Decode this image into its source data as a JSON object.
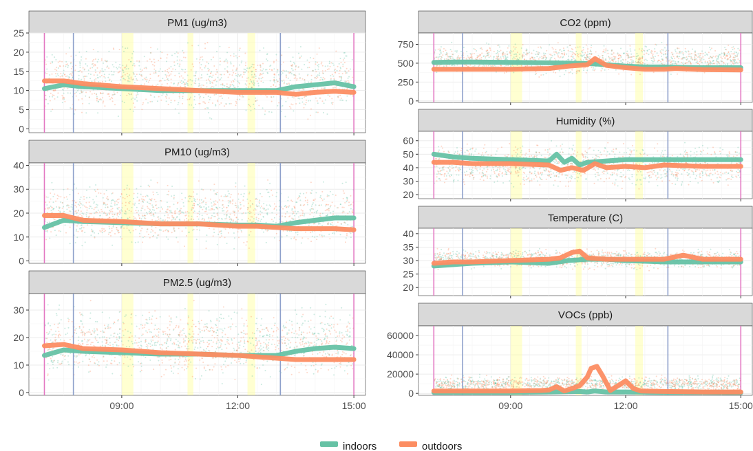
{
  "colors": {
    "indoors": "#66c2a5",
    "outdoors": "#fc8d62",
    "strip_bg": "#d9d9d9",
    "grid": "#ebebeb",
    "pink_line": "#e377c2",
    "blue_line": "#8da0cb",
    "yellow_band": "#ffff99"
  },
  "legend": {
    "items": [
      {
        "key": "indoors",
        "label": "indoors"
      },
      {
        "key": "outdoors",
        "label": "outdoors"
      }
    ]
  },
  "chart_data": [
    {
      "type": "scatter",
      "title": "PM1 (ug/m3)",
      "x_ticks": [
        "09:00",
        "12:00",
        "15:00"
      ],
      "x_tick_hours": [
        9,
        12,
        15
      ],
      "xlim_hours": [
        6.6,
        15.3
      ],
      "ylim": [
        -1,
        25
      ],
      "yticks": [
        0,
        5,
        10,
        15,
        20,
        25
      ],
      "scatter_spread": {
        "lo": 1,
        "hi": 24
      },
      "series": [
        {
          "key": "indoors",
          "name": "indoors",
          "x": [
            7,
            7.5,
            8,
            9,
            10,
            11,
            12,
            12.5,
            13,
            13.5,
            14,
            14.5,
            15
          ],
          "y": [
            10.5,
            11.5,
            11,
            10.5,
            10,
            10,
            10,
            10,
            10,
            11,
            11.5,
            12,
            11
          ]
        },
        {
          "key": "outdoors",
          "name": "outdoors",
          "x": [
            7,
            7.5,
            8,
            9,
            10,
            11,
            12,
            12.5,
            13,
            13.5,
            14,
            14.5,
            15
          ],
          "y": [
            12.5,
            12.5,
            11.8,
            11,
            10.5,
            10,
            9.5,
            9.5,
            9.5,
            9,
            9.5,
            9.8,
            9.5
          ]
        }
      ]
    },
    {
      "type": "scatter",
      "title": "PM10 (ug/m3)",
      "x_ticks": [
        "09:00",
        "12:00",
        "15:00"
      ],
      "x_tick_hours": [
        9,
        12,
        15
      ],
      "xlim_hours": [
        6.6,
        15.3
      ],
      "ylim": [
        -1,
        41
      ],
      "yticks": [
        0,
        10,
        20,
        30,
        40
      ],
      "scatter_spread": {
        "lo": 3,
        "hi": 36
      },
      "series": [
        {
          "key": "indoors",
          "name": "indoors",
          "x": [
            7,
            7.5,
            8,
            9,
            10,
            11,
            12,
            12.5,
            13,
            13.5,
            14,
            14.5,
            15
          ],
          "y": [
            14,
            17,
            16.5,
            16,
            15.5,
            15.5,
            15,
            15,
            14.5,
            16,
            17,
            18,
            18
          ]
        },
        {
          "key": "outdoors",
          "name": "outdoors",
          "x": [
            7,
            7.5,
            8,
            9,
            10,
            11,
            12,
            12.5,
            13,
            13.5,
            14,
            14.5,
            15
          ],
          "y": [
            19,
            19,
            17,
            16.5,
            15.5,
            15.5,
            14.5,
            14.5,
            14,
            13.5,
            13.5,
            13.5,
            13
          ]
        }
      ]
    },
    {
      "type": "scatter",
      "title": "PM2.5 (ug/m3)",
      "x_ticks": [
        "09:00",
        "12:00",
        "15:00"
      ],
      "x_tick_hours": [
        9,
        12,
        15
      ],
      "xlim_hours": [
        6.6,
        15.3
      ],
      "ylim": [
        -1,
        36
      ],
      "yticks": [
        0,
        10,
        20,
        30
      ],
      "scatter_spread": {
        "lo": 2,
        "hi": 34
      },
      "series": [
        {
          "key": "indoors",
          "name": "indoors",
          "x": [
            7,
            7.5,
            8,
            9,
            10,
            11,
            12,
            12.5,
            13,
            13.5,
            14,
            14.5,
            15
          ],
          "y": [
            13.5,
            15.5,
            15,
            14.5,
            14,
            14,
            13.5,
            13.5,
            13.5,
            15,
            16,
            16.5,
            16
          ]
        },
        {
          "key": "outdoors",
          "name": "outdoors",
          "x": [
            7,
            7.5,
            8,
            9,
            10,
            11,
            12,
            12.5,
            13,
            13.5,
            14,
            14.5,
            15
          ],
          "y": [
            17,
            17.5,
            16,
            15.5,
            14.5,
            14,
            13.5,
            13,
            12.5,
            12,
            12,
            12,
            12
          ]
        }
      ]
    },
    {
      "type": "scatter",
      "title": "CO2 (ppm)",
      "x_ticks": [
        "09:00",
        "12:00",
        "15:00"
      ],
      "x_tick_hours": [
        9,
        12,
        15
      ],
      "xlim_hours": [
        6.6,
        15.3
      ],
      "ylim": [
        -20,
        900
      ],
      "yticks": [
        0,
        250,
        500,
        750
      ],
      "yticklabels": [
        "0",
        "250",
        "500",
        "750"
      ],
      "scatter_spread": {
        "lo": 300,
        "hi": 800
      },
      "series": [
        {
          "key": "indoors",
          "name": "indoors",
          "x": [
            7,
            7.5,
            8,
            9,
            10,
            10.5,
            11,
            11.2,
            11.5,
            12,
            12.5,
            13,
            13.5,
            14,
            15
          ],
          "y": [
            510,
            515,
            515,
            510,
            505,
            500,
            495,
            490,
            480,
            460,
            450,
            450,
            445,
            440,
            440
          ]
        },
        {
          "key": "outdoors",
          "name": "outdoors",
          "x": [
            7,
            7.5,
            8,
            9,
            10,
            10.5,
            11,
            11.2,
            11.5,
            12,
            12.5,
            13,
            13.3,
            13.5,
            14,
            15
          ],
          "y": [
            420,
            420,
            420,
            420,
            430,
            460,
            480,
            560,
            470,
            440,
            420,
            420,
            430,
            425,
            415,
            410
          ]
        }
      ]
    },
    {
      "type": "scatter",
      "title": "Humidity (%)",
      "x_ticks": [
        "09:00",
        "12:00",
        "15:00"
      ],
      "x_tick_hours": [
        9,
        12,
        15
      ],
      "xlim_hours": [
        6.6,
        15.3
      ],
      "ylim": [
        17,
        67
      ],
      "yticks": [
        20,
        30,
        40,
        50,
        60
      ],
      "scatter_spread": {
        "lo": 22,
        "hi": 62
      },
      "series": [
        {
          "key": "indoors",
          "name": "indoors",
          "x": [
            7,
            7.5,
            8,
            9,
            10,
            10.2,
            10.4,
            10.6,
            10.8,
            11,
            11.5,
            12,
            12.5,
            13,
            14,
            15
          ],
          "y": [
            50,
            48,
            47,
            46,
            45,
            50,
            44,
            47,
            42,
            44,
            45,
            46,
            46,
            46,
            46,
            46
          ]
        },
        {
          "key": "outdoors",
          "name": "outdoors",
          "x": [
            7,
            7.5,
            8,
            9,
            10,
            10.3,
            10.6,
            10.9,
            11.2,
            11.5,
            12,
            12.5,
            13,
            14,
            15
          ],
          "y": [
            44,
            44,
            43,
            43,
            42,
            38,
            40,
            38,
            43,
            40,
            41,
            40,
            42,
            41,
            41
          ]
        }
      ]
    },
    {
      "type": "scatter",
      "title": "Temperature (C)",
      "x_ticks": [
        "09:00",
        "12:00",
        "15:00"
      ],
      "x_tick_hours": [
        9,
        12,
        15
      ],
      "xlim_hours": [
        6.6,
        15.3
      ],
      "ylim": [
        17,
        42
      ],
      "yticks": [
        20,
        25,
        30,
        35,
        40
      ],
      "scatter_spread": {
        "lo": 26,
        "hi": 35
      },
      "series": [
        {
          "key": "indoors",
          "name": "indoors",
          "x": [
            7,
            7.5,
            8,
            9,
            10,
            10.5,
            11,
            11.5,
            12,
            13,
            14,
            15
          ],
          "y": [
            28,
            28.5,
            29,
            29.5,
            29,
            30,
            30.5,
            30.5,
            30,
            29.5,
            29.5,
            29.5
          ]
        },
        {
          "key": "outdoors",
          "name": "outdoors",
          "x": [
            7,
            7.5,
            8,
            9,
            10,
            10.3,
            10.6,
            10.8,
            11,
            11.5,
            12,
            12.5,
            13,
            13.5,
            14,
            15
          ],
          "y": [
            29,
            29.5,
            29.5,
            30,
            30.5,
            31,
            33,
            33.5,
            31,
            30.5,
            30.5,
            30.5,
            30.5,
            32,
            30.5,
            30.5
          ]
        }
      ]
    },
    {
      "type": "scatter",
      "title": "VOCs (ppb)",
      "x_ticks": [
        "09:00",
        "12:00",
        "15:00"
      ],
      "x_tick_hours": [
        9,
        12,
        15
      ],
      "xlim_hours": [
        6.6,
        15.3
      ],
      "ylim": [
        -2000,
        70000
      ],
      "yticks": [
        0,
        20000,
        40000,
        60000
      ],
      "yticklabels": [
        "0",
        "20000",
        "40000",
        "60000"
      ],
      "scatter_spread": {
        "lo": 0,
        "hi": 20000
      },
      "series": [
        {
          "key": "indoors",
          "name": "indoors",
          "x": [
            7,
            8,
            9,
            10,
            10.8,
            11,
            11.2,
            11.5,
            12,
            13,
            14,
            15
          ],
          "y": [
            1000,
            1000,
            1000,
            1500,
            2000,
            1500,
            2500,
            1500,
            1500,
            1000,
            1000,
            800
          ]
        },
        {
          "key": "outdoors",
          "name": "outdoors",
          "x": [
            7,
            8,
            9,
            9.8,
            10,
            10.2,
            10.4,
            10.6,
            10.8,
            11,
            11.1,
            11.25,
            11.4,
            11.6,
            11.8,
            12,
            12.2,
            12.4,
            13,
            14,
            15
          ],
          "y": [
            2500,
            2500,
            2500,
            3000,
            3500,
            7000,
            2500,
            5000,
            8000,
            17000,
            26000,
            28000,
            18000,
            3000,
            8000,
            13000,
            5000,
            2500,
            2000,
            1500,
            1500
          ]
        }
      ]
    }
  ]
}
